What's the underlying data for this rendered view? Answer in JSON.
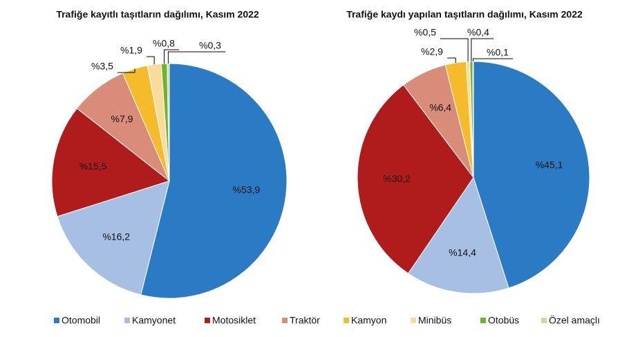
{
  "chart_data": [
    {
      "type": "pie",
      "title": "Trafiğe kayıtlı taşıtların dağılımı, Kasım 2022",
      "categories": [
        "Otomobil",
        "Kamyonet",
        "Motosiklet",
        "Traktör",
        "Kamyon",
        "Minibüs",
        "Otobüs",
        "Özel amaçlı"
      ],
      "values": [
        53.9,
        16.2,
        15.5,
        7.9,
        3.5,
        1.9,
        0.8,
        0.3
      ],
      "value_labels": [
        "%53,9",
        "%16,2",
        "%15,5",
        "%7,9",
        "%3,5",
        "%1,9",
        "%0,8",
        "%0,3"
      ],
      "colors": [
        "#2b7bc4",
        "#a6bfe3",
        "#b01c1c",
        "#d98c78",
        "#f5bb2a",
        "#fadc9a",
        "#72b32b",
        "#c8df9a"
      ]
    },
    {
      "type": "pie",
      "title": "Trafiğe kaydı yapılan taşıtların dağılımı, Kasım 2022",
      "categories": [
        "Otomobil",
        "Kamyonet",
        "Motosiklet",
        "Traktör",
        "Kamyon",
        "Minibüs",
        "Otobüs",
        "Özel amaçlı"
      ],
      "values": [
        45.1,
        14.4,
        30.2,
        6.4,
        2.9,
        0.5,
        0.4,
        0.1
      ],
      "value_labels": [
        "%45,1",
        "%14,4",
        "%30,2",
        "%6,4",
        "%2,9",
        "%0,5",
        "%0,4",
        "%0,1"
      ],
      "colors": [
        "#2b7bc4",
        "#a6bfe3",
        "#b01c1c",
        "#d98c78",
        "#f5bb2a",
        "#fadc9a",
        "#72b32b",
        "#c8df9a"
      ]
    }
  ]
}
